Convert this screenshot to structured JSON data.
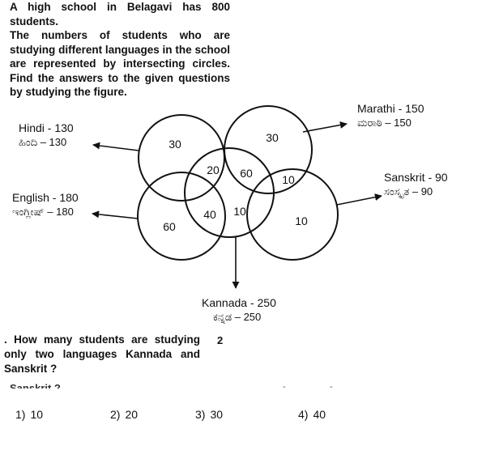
{
  "intro": {
    "line1": "A high school in Belagavi has 800 students.",
    "line2": "The numbers of students who are studying different languages in the school are represented by intersecting circles. Find the answers to the given questions by studying the figure."
  },
  "labels": {
    "hindi": {
      "en": "Hindi - 130",
      "kn": "ಹಿಂದಿ  –  130"
    },
    "marathi": {
      "en": "Marathi - 150",
      "kn": "ಮರಾಠಿ  –  150"
    },
    "english": {
      "en": "English - 180",
      "kn": "ಇಂಗ್ಲೀಷ್  –  180"
    },
    "sanskrit": {
      "en": "Sanskrit - 90",
      "kn": "ಸಂಸ್ಕೃತ  –  90"
    },
    "kannada": {
      "en": "Kannada - 250",
      "kn": "ಕನ್ನಡ  –  250"
    }
  },
  "regions": {
    "hindi_only": "30",
    "marathi_only": "30",
    "hindi_kannada": "20",
    "kannada_marathi": "60",
    "marathi_sanskrit": "10",
    "english_only": "60",
    "english_kannada": "40",
    "kannada_sanskrit": "10",
    "sanskrit_only": "10"
  },
  "question": {
    "number_marker": ".",
    "text": "How many students are studying only two languages Kannada and Sanskrit ?",
    "side_number": "2",
    "ghost_text": "Sanskrit ?",
    "options": [
      {
        "num": "1)",
        "value": "10"
      },
      {
        "num": "2)",
        "value": "20"
      },
      {
        "num": "3)",
        "value": "30"
      },
      {
        "num": "4)",
        "value": "40"
      }
    ]
  }
}
